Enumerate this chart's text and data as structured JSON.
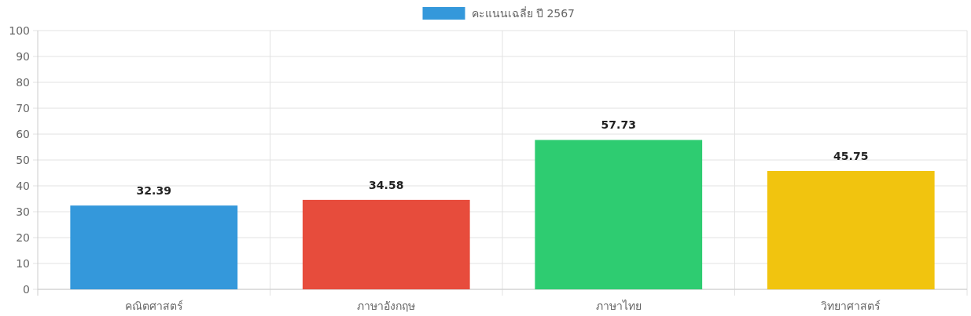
{
  "chart_data": {
    "type": "bar",
    "categories": [
      "คณิตศาสตร์",
      "ภาษาอังกฤษ",
      "ภาษาไทย",
      "วิทยาศาสตร์"
    ],
    "series": [
      {
        "name": "คะแนนเฉลี่ย ปี 2567",
        "color": "#3498db",
        "colors": [
          "#3498db",
          "#e74c3c",
          "#2ecc71",
          "#f1c40f"
        ],
        "values": [
          32.39,
          34.58,
          57.73,
          45.75
        ]
      }
    ],
    "ylim": [
      0,
      100
    ],
    "yticks": [
      0,
      10,
      20,
      30,
      40,
      50,
      60,
      70,
      80,
      90,
      100
    ],
    "grid": true,
    "legend": "top",
    "data_labels": true
  }
}
